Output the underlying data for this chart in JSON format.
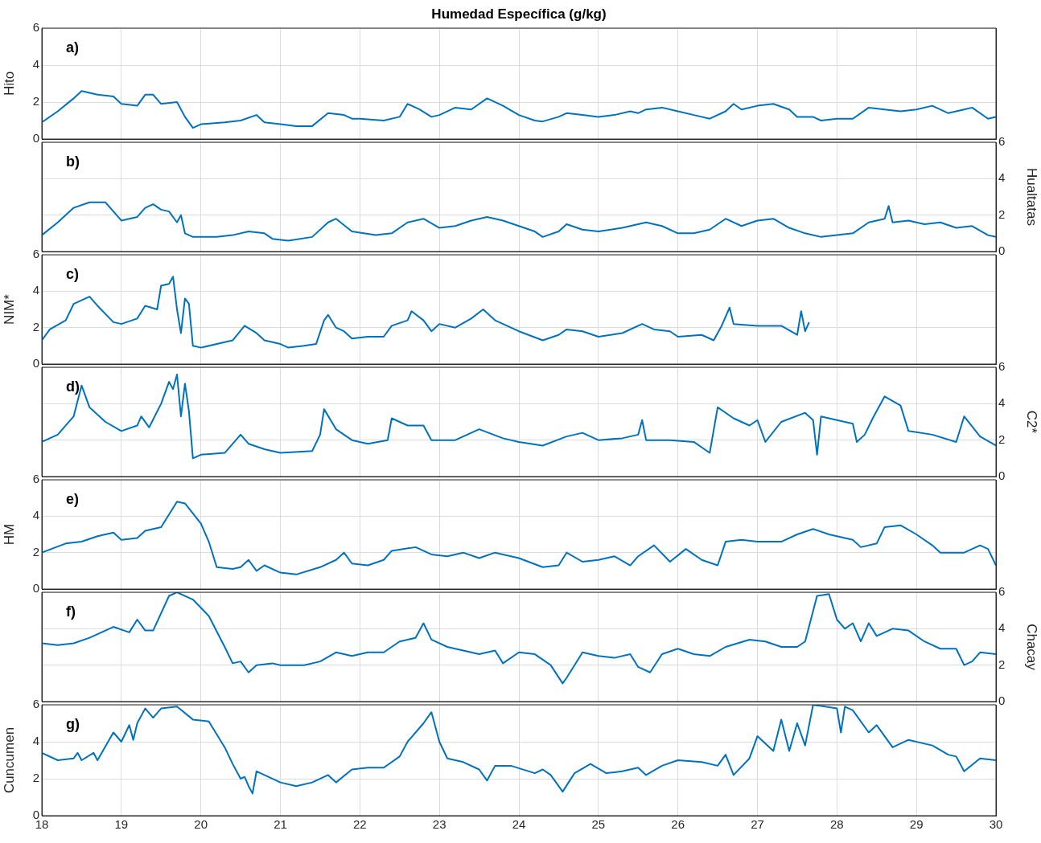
{
  "chart_data": [
    {
      "type": "line",
      "title": "Humedad Específica (g/kg)",
      "annotations": [
        "a)"
      ],
      "ylabel": "Hito",
      "xlim": [
        18,
        30
      ],
      "ylim": [
        0,
        6
      ],
      "yticks": [
        0,
        2,
        4,
        6
      ],
      "grid": true,
      "tick_labels": "y",
      "series": [
        {
          "color": "#0072bd",
          "x": [
            18.0,
            18.2,
            18.4,
            18.5,
            18.7,
            18.9,
            19.0,
            19.2,
            19.3,
            19.4,
            19.5,
            19.7,
            19.8,
            19.9,
            20.0,
            20.3,
            20.5,
            20.7,
            20.8,
            21.0,
            21.2,
            21.4,
            21.6,
            21.8,
            21.9,
            22.0,
            22.3,
            22.5,
            22.6,
            22.75,
            22.9,
            23.0,
            23.2,
            23.4,
            23.6,
            23.8,
            24.0,
            24.2,
            24.3,
            24.5,
            24.6,
            24.8,
            25.0,
            25.2,
            25.4,
            25.5,
            25.6,
            25.8,
            26.0,
            26.2,
            26.4,
            26.6,
            26.7,
            26.8,
            27.0,
            27.2,
            27.4,
            27.5,
            27.7,
            27.8,
            28.0,
            28.2,
            28.4,
            28.6,
            28.8,
            29.0,
            29.2,
            29.4,
            29.6,
            29.7,
            29.9,
            30.0
          ],
          "values": [
            0.9,
            1.5,
            2.2,
            2.6,
            2.4,
            2.3,
            1.9,
            1.8,
            2.4,
            2.4,
            1.9,
            2.0,
            1.2,
            0.6,
            0.8,
            0.9,
            1.0,
            1.3,
            0.9,
            0.8,
            0.7,
            0.7,
            1.4,
            1.3,
            1.1,
            1.1,
            1.0,
            1.2,
            1.9,
            1.6,
            1.2,
            1.3,
            1.7,
            1.6,
            2.2,
            1.8,
            1.3,
            1.0,
            0.95,
            1.2,
            1.4,
            1.3,
            1.2,
            1.3,
            1.5,
            1.4,
            1.6,
            1.7,
            1.5,
            1.3,
            1.1,
            1.5,
            1.9,
            1.6,
            1.8,
            1.9,
            1.6,
            1.2,
            1.2,
            1.0,
            1.1,
            1.1,
            1.7,
            1.6,
            1.5,
            1.6,
            1.8,
            1.4,
            1.6,
            1.7,
            1.1,
            1.2
          ]
        }
      ]
    },
    {
      "type": "line",
      "annotations": [
        "b)"
      ],
      "y2label": "Hualtatas",
      "xlim": [
        18,
        30
      ],
      "y2lim": [
        0,
        6
      ],
      "y2ticks": [
        0,
        2,
        4,
        6
      ],
      "grid": true,
      "tick_labels": "y2",
      "series": [
        {
          "color": "#0072bd",
          "axis": "y2",
          "x": [
            18.0,
            18.2,
            18.4,
            18.6,
            18.8,
            19.0,
            19.2,
            19.3,
            19.4,
            19.5,
            19.6,
            19.7,
            19.75,
            19.8,
            19.9,
            20.2,
            20.4,
            20.6,
            20.8,
            20.9,
            21.1,
            21.4,
            21.6,
            21.7,
            21.9,
            22.2,
            22.4,
            22.6,
            22.8,
            23.0,
            23.2,
            23.4,
            23.6,
            23.8,
            24.0,
            24.2,
            24.3,
            24.5,
            24.6,
            24.8,
            25.0,
            25.3,
            25.6,
            25.8,
            26.0,
            26.2,
            26.4,
            26.6,
            26.8,
            27.0,
            27.2,
            27.4,
            27.6,
            27.8,
            28.0,
            28.2,
            28.4,
            28.6,
            28.65,
            28.7,
            28.9,
            29.1,
            29.3,
            29.5,
            29.7,
            29.9,
            30.0
          ],
          "values": [
            0.9,
            1.6,
            2.4,
            2.7,
            2.7,
            1.7,
            1.9,
            2.4,
            2.6,
            2.3,
            2.2,
            1.6,
            2.0,
            1.0,
            0.8,
            0.8,
            0.9,
            1.1,
            1.0,
            0.7,
            0.6,
            0.8,
            1.6,
            1.8,
            1.1,
            0.9,
            1.0,
            1.6,
            1.8,
            1.3,
            1.4,
            1.7,
            1.9,
            1.7,
            1.4,
            1.1,
            0.8,
            1.1,
            1.5,
            1.2,
            1.1,
            1.3,
            1.6,
            1.4,
            1.0,
            1.0,
            1.2,
            1.8,
            1.4,
            1.7,
            1.8,
            1.3,
            1.0,
            0.8,
            0.9,
            1.0,
            1.6,
            1.8,
            2.5,
            1.6,
            1.7,
            1.5,
            1.6,
            1.3,
            1.4,
            0.9,
            0.8
          ]
        }
      ]
    },
    {
      "type": "line",
      "annotations": [
        "c)"
      ],
      "ylabel": "NIM*",
      "xlim": [
        18,
        30
      ],
      "ylim": [
        0,
        6
      ],
      "yticks": [
        0,
        2,
        4,
        6
      ],
      "grid": true,
      "tick_labels": "y",
      "series": [
        {
          "color": "#0072bd",
          "x": [
            18.0,
            18.1,
            18.3,
            18.4,
            18.6,
            18.7,
            18.9,
            19.0,
            19.2,
            19.3,
            19.45,
            19.5,
            19.6,
            19.65,
            19.7,
            19.75,
            19.8,
            19.85,
            19.9,
            20.0,
            20.3,
            20.4,
            20.55,
            20.7,
            20.8,
            21.0,
            21.1,
            21.3,
            21.45,
            21.55,
            21.6,
            21.7,
            21.8,
            21.9,
            22.1,
            22.3,
            22.4,
            22.6,
            22.65,
            22.8,
            22.9,
            23.0,
            23.2,
            23.4,
            23.55,
            23.7,
            24.0,
            24.3,
            24.5,
            24.6,
            24.8,
            25.0,
            25.3,
            25.55,
            25.7,
            25.9,
            26.0,
            26.3,
            26.45,
            26.55,
            26.65,
            26.7,
            27.0,
            27.3,
            27.5,
            27.55,
            27.6,
            27.65
          ],
          "values": [
            1.3,
            1.9,
            2.4,
            3.3,
            3.7,
            3.2,
            2.3,
            2.2,
            2.5,
            3.2,
            3.0,
            4.3,
            4.4,
            4.8,
            3.0,
            1.7,
            3.6,
            3.3,
            1.0,
            0.9,
            1.2,
            1.3,
            2.1,
            1.7,
            1.3,
            1.1,
            0.9,
            1.0,
            1.1,
            2.4,
            2.7,
            2.0,
            1.8,
            1.4,
            1.5,
            1.5,
            2.1,
            2.4,
            2.9,
            2.4,
            1.8,
            2.2,
            2.0,
            2.5,
            3.0,
            2.4,
            1.8,
            1.3,
            1.6,
            1.9,
            1.8,
            1.5,
            1.7,
            2.2,
            1.9,
            1.8,
            1.5,
            1.6,
            1.3,
            2.1,
            3.1,
            2.2,
            2.1,
            2.1,
            1.6,
            2.9,
            1.8,
            2.3
          ]
        }
      ]
    },
    {
      "type": "line",
      "annotations": [
        "d)"
      ],
      "y2label": "C2*",
      "xlim": [
        18,
        30
      ],
      "y2lim": [
        0,
        6
      ],
      "y2ticks": [
        0,
        2,
        4,
        6
      ],
      "grid": true,
      "tick_labels": "y2",
      "series": [
        {
          "color": "#0072bd",
          "axis": "y2",
          "x": [
            18.0,
            18.2,
            18.4,
            18.5,
            18.6,
            18.8,
            19.0,
            19.2,
            19.25,
            19.35,
            19.5,
            19.6,
            19.65,
            19.7,
            19.75,
            19.8,
            19.85,
            19.9,
            20.0,
            20.3,
            20.5,
            20.6,
            20.8,
            21.0,
            21.4,
            21.5,
            21.55,
            21.7,
            21.9,
            22.1,
            22.35,
            22.4,
            22.6,
            22.8,
            22.9,
            23.2,
            23.5,
            23.8,
            24.0,
            24.3,
            24.6,
            24.8,
            25.0,
            25.3,
            25.5,
            25.55,
            25.6,
            25.9,
            26.2,
            26.4,
            26.5,
            26.7,
            26.9,
            27.0,
            27.1,
            27.3,
            27.6,
            27.7,
            27.75,
            27.8,
            28.0,
            28.2,
            28.25,
            28.35,
            28.45,
            28.6,
            28.8,
            28.9,
            29.2,
            29.5,
            29.6,
            29.8,
            30.0
          ],
          "values": [
            1.9,
            2.3,
            3.3,
            5.0,
            3.8,
            3.0,
            2.5,
            2.8,
            3.3,
            2.7,
            4.0,
            5.2,
            4.8,
            5.6,
            3.3,
            5.1,
            3.6,
            1.0,
            1.2,
            1.3,
            2.3,
            1.8,
            1.5,
            1.3,
            1.4,
            2.3,
            3.7,
            2.6,
            2.0,
            1.8,
            2.0,
            3.2,
            2.8,
            2.8,
            2.0,
            2.0,
            2.6,
            2.1,
            1.9,
            1.7,
            2.2,
            2.4,
            2.0,
            2.1,
            2.3,
            3.1,
            2.0,
            2.0,
            1.9,
            1.3,
            3.8,
            3.2,
            2.8,
            3.1,
            1.9,
            3.0,
            3.5,
            3.1,
            1.2,
            3.3,
            3.1,
            2.9,
            1.9,
            2.3,
            3.2,
            4.4,
            3.9,
            2.5,
            2.3,
            1.9,
            3.3,
            2.2,
            1.7
          ]
        }
      ]
    },
    {
      "type": "line",
      "annotations": [
        "e)"
      ],
      "ylabel": "HM",
      "xlim": [
        18,
        30
      ],
      "ylim": [
        0,
        6
      ],
      "yticks": [
        0,
        2,
        4,
        6
      ],
      "grid": true,
      "tick_labels": "y",
      "series": [
        {
          "color": "#0072bd",
          "x": [
            18.0,
            18.3,
            18.5,
            18.7,
            18.9,
            19.0,
            19.2,
            19.3,
            19.5,
            19.7,
            19.8,
            20.0,
            20.1,
            20.2,
            20.4,
            20.5,
            20.6,
            20.7,
            20.8,
            21.0,
            21.2,
            21.5,
            21.7,
            21.8,
            21.9,
            22.1,
            22.3,
            22.4,
            22.7,
            22.9,
            23.1,
            23.3,
            23.5,
            23.7,
            24.0,
            24.3,
            24.5,
            24.6,
            24.8,
            25.0,
            25.2,
            25.4,
            25.5,
            25.7,
            25.9,
            26.1,
            26.3,
            26.5,
            26.6,
            26.8,
            27.0,
            27.3,
            27.5,
            27.7,
            27.9,
            28.0,
            28.2,
            28.3,
            28.5,
            28.6,
            28.8,
            29.0,
            29.2,
            29.3,
            29.6,
            29.8,
            29.9,
            30.0
          ],
          "values": [
            2.0,
            2.5,
            2.6,
            2.9,
            3.1,
            2.7,
            2.8,
            3.2,
            3.4,
            4.8,
            4.7,
            3.6,
            2.6,
            1.2,
            1.1,
            1.2,
            1.6,
            1.0,
            1.3,
            0.9,
            0.8,
            1.2,
            1.6,
            2.0,
            1.4,
            1.3,
            1.6,
            2.1,
            2.3,
            1.9,
            1.8,
            2.0,
            1.7,
            2.0,
            1.7,
            1.2,
            1.3,
            2.0,
            1.5,
            1.6,
            1.8,
            1.3,
            1.8,
            2.4,
            1.5,
            2.2,
            1.6,
            1.3,
            2.6,
            2.7,
            2.6,
            2.6,
            3.0,
            3.3,
            3.0,
            2.9,
            2.7,
            2.3,
            2.5,
            3.4,
            3.5,
            3.0,
            2.4,
            2.0,
            2.0,
            2.4,
            2.2,
            1.3
          ]
        }
      ]
    },
    {
      "type": "line",
      "annotations": [
        "f)"
      ],
      "y2label": "Chacay",
      "xlim": [
        18,
        30
      ],
      "y2lim": [
        0,
        6
      ],
      "y2ticks": [
        0,
        2,
        4,
        6
      ],
      "grid": true,
      "tick_labels": "y2",
      "series": [
        {
          "color": "#0072bd",
          "axis": "y2",
          "x": [
            18.0,
            18.2,
            18.4,
            18.6,
            18.9,
            19.1,
            19.2,
            19.3,
            19.4,
            19.6,
            19.7,
            19.9,
            20.1,
            20.3,
            20.4,
            20.5,
            20.6,
            20.7,
            20.9,
            21.0,
            21.3,
            21.5,
            21.7,
            21.9,
            22.1,
            22.3,
            22.5,
            22.7,
            22.8,
            22.9,
            23.1,
            23.3,
            23.5,
            23.7,
            23.8,
            24.0,
            24.2,
            24.4,
            24.55,
            24.6,
            24.7,
            24.8,
            25.0,
            25.2,
            25.4,
            25.5,
            25.65,
            25.8,
            26.0,
            26.2,
            26.4,
            26.6,
            26.9,
            27.1,
            27.3,
            27.5,
            27.6,
            27.75,
            27.9,
            28.0,
            28.1,
            28.2,
            28.3,
            28.4,
            28.5,
            28.7,
            28.9,
            29.1,
            29.3,
            29.5,
            29.6,
            29.7,
            29.8,
            30.0
          ],
          "values": [
            3.2,
            3.1,
            3.2,
            3.5,
            4.1,
            3.8,
            4.5,
            3.9,
            3.9,
            5.8,
            6.0,
            5.6,
            4.7,
            3.0,
            2.1,
            2.2,
            1.6,
            2.0,
            2.1,
            2.0,
            2.0,
            2.2,
            2.7,
            2.5,
            2.7,
            2.7,
            3.3,
            3.5,
            4.3,
            3.4,
            3.0,
            2.8,
            2.6,
            2.8,
            2.1,
            2.7,
            2.6,
            2.0,
            1.0,
            1.3,
            2.0,
            2.7,
            2.5,
            2.4,
            2.6,
            1.9,
            1.6,
            2.6,
            2.9,
            2.6,
            2.5,
            3.0,
            3.4,
            3.3,
            3.0,
            3.0,
            3.3,
            5.8,
            5.9,
            4.5,
            4.0,
            4.3,
            3.3,
            4.3,
            3.6,
            4.0,
            3.9,
            3.3,
            2.9,
            2.9,
            2.0,
            2.2,
            2.7,
            2.6
          ]
        }
      ]
    },
    {
      "type": "line",
      "annotations": [
        "g)"
      ],
      "ylabel": "Cuncumen",
      "xlim": [
        18,
        30
      ],
      "xticks": [
        18,
        19,
        20,
        21,
        22,
        23,
        24,
        25,
        26,
        27,
        28,
        29,
        30
      ],
      "ylim": [
        0,
        6
      ],
      "yticks": [
        0,
        2,
        4,
        6
      ],
      "grid": true,
      "series": [
        {
          "color": "#0072bd",
          "x": [
            18.0,
            18.2,
            18.4,
            18.45,
            18.5,
            18.65,
            18.7,
            18.9,
            19.0,
            19.1,
            19.15,
            19.2,
            19.3,
            19.4,
            19.5,
            19.7,
            19.9,
            20.1,
            20.3,
            20.4,
            20.5,
            20.55,
            20.6,
            20.65,
            20.7,
            20.8,
            21.0,
            21.2,
            21.4,
            21.6,
            21.7,
            21.9,
            22.1,
            22.3,
            22.5,
            22.6,
            22.8,
            22.9,
            23.0,
            23.1,
            23.3,
            23.5,
            23.6,
            23.7,
            23.9,
            24.2,
            24.3,
            24.4,
            24.5,
            24.55,
            24.7,
            24.9,
            25.1,
            25.3,
            25.5,
            25.6,
            25.8,
            26.0,
            26.3,
            26.5,
            26.6,
            26.7,
            26.9,
            27.0,
            27.2,
            27.3,
            27.4,
            27.5,
            27.6,
            27.7,
            28.0,
            28.05,
            28.1,
            28.2,
            28.4,
            28.5,
            28.7,
            28.9,
            29.2,
            29.4,
            29.5,
            29.6,
            29.8,
            30.0
          ],
          "values": [
            3.4,
            3.0,
            3.1,
            3.4,
            3.0,
            3.4,
            3.0,
            4.5,
            4.0,
            4.9,
            4.1,
            5.0,
            5.8,
            5.3,
            5.8,
            5.9,
            5.2,
            5.1,
            3.7,
            2.8,
            2.0,
            2.1,
            1.6,
            1.2,
            2.4,
            2.2,
            1.8,
            1.6,
            1.8,
            2.2,
            1.8,
            2.5,
            2.6,
            2.6,
            3.2,
            4.0,
            5.0,
            5.6,
            4.0,
            3.1,
            2.9,
            2.5,
            1.9,
            2.7,
            2.7,
            2.3,
            2.5,
            2.2,
            1.6,
            1.3,
            2.3,
            2.8,
            2.3,
            2.4,
            2.6,
            2.2,
            2.7,
            3.0,
            2.9,
            2.7,
            3.3,
            2.2,
            3.1,
            4.3,
            3.5,
            5.2,
            3.5,
            5.0,
            3.8,
            6.0,
            5.8,
            4.5,
            5.9,
            5.7,
            4.5,
            4.9,
            3.7,
            4.1,
            3.8,
            3.3,
            3.2,
            2.4,
            3.1,
            3.0
          ]
        }
      ]
    }
  ]
}
